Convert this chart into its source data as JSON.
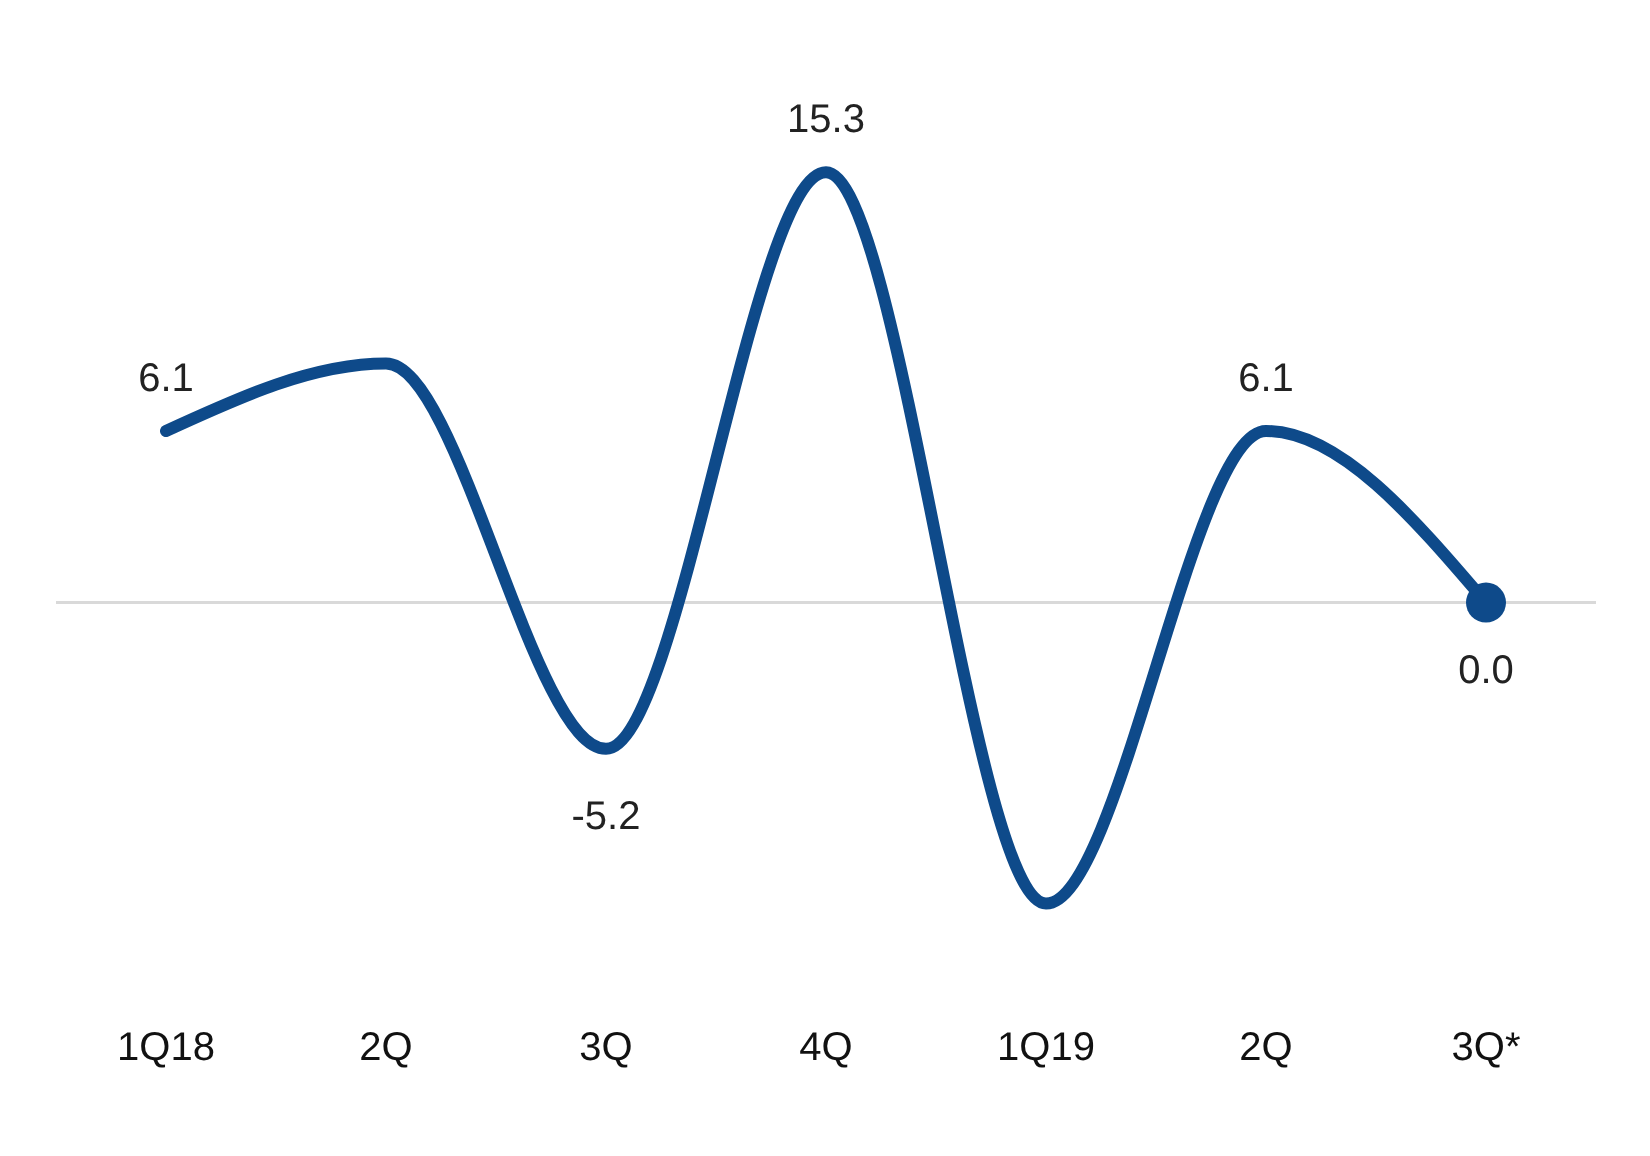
{
  "chart_data": {
    "type": "line",
    "categories": [
      "1Q18",
      "2Q",
      "3Q",
      "4Q",
      "1Q19",
      "2Q",
      "3Q*"
    ],
    "series": [
      {
        "color": "#0e4a8a",
        "values": [
          6.1,
          8.5,
          -5.2,
          15.3,
          -10.7,
          6.1,
          0.0
        ],
        "value_labels": [
          "6.1",
          null,
          "-5.2",
          "15.3",
          null,
          "6.1",
          "0.0"
        ]
      },
      {
        "type": "scatter",
        "color": "#0e4a8a",
        "x": [
          "3Q*"
        ],
        "values": [
          0.0
        ]
      }
    ],
    "ref_lines": [
      {
        "axis": "y",
        "value": 0,
        "color": "#d9d9d9"
      }
    ],
    "grid": false,
    "legend": false
  }
}
